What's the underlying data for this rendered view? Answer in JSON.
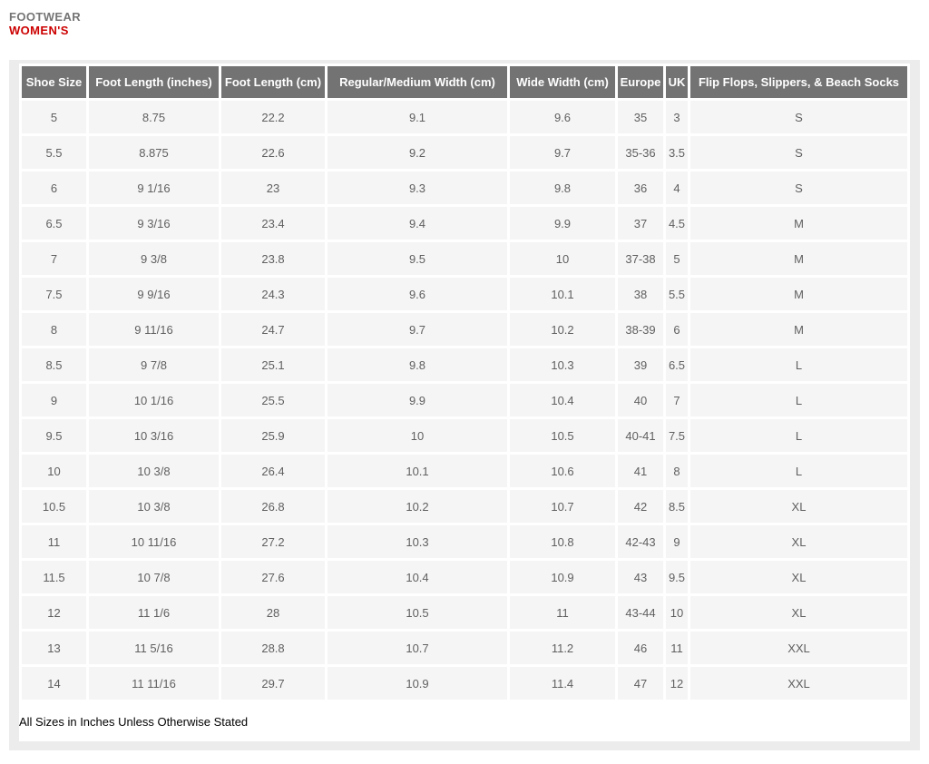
{
  "header": {
    "category": "FOOTWEAR",
    "gender": "WOMEN'S"
  },
  "colors": {
    "accent_red": "#cc0000",
    "table_header_bg": "#737373",
    "cell_bg": "#f5f5f5",
    "panel_frame_bg": "#ececec"
  },
  "table": {
    "headers": [
      "Shoe Size",
      "Foot Length (inches)",
      "Foot Length (cm)",
      "Regular/Medium Width (cm)",
      "Wide Width (cm)",
      "Europe",
      "UK",
      "Flip Flops, Slippers, & Beach Socks"
    ],
    "rows": [
      [
        "5",
        "8.75",
        "22.2",
        "9.1",
        "9.6",
        "35",
        "3",
        "S"
      ],
      [
        "5.5",
        "8.875",
        "22.6",
        "9.2",
        "9.7",
        "35-36",
        "3.5",
        "S"
      ],
      [
        "6",
        "9 1/16",
        "23",
        "9.3",
        "9.8",
        "36",
        "4",
        "S"
      ],
      [
        "6.5",
        "9 3/16",
        "23.4",
        "9.4",
        "9.9",
        "37",
        "4.5",
        "M"
      ],
      [
        "7",
        "9 3/8",
        "23.8",
        "9.5",
        "10",
        "37-38",
        "5",
        "M"
      ],
      [
        "7.5",
        "9 9/16",
        "24.3",
        "9.6",
        "10.1",
        "38",
        "5.5",
        "M"
      ],
      [
        "8",
        "9 11/16",
        "24.7",
        "9.7",
        "10.2",
        "38-39",
        "6",
        "M"
      ],
      [
        "8.5",
        "9 7/8",
        "25.1",
        "9.8",
        "10.3",
        "39",
        "6.5",
        "L"
      ],
      [
        "9",
        "10 1/16",
        "25.5",
        "9.9",
        "10.4",
        "40",
        "7",
        "L"
      ],
      [
        "9.5",
        "10 3/16",
        "25.9",
        "10",
        "10.5",
        "40-41",
        "7.5",
        "L"
      ],
      [
        "10",
        "10 3/8",
        "26.4",
        "10.1",
        "10.6",
        "41",
        "8",
        "L"
      ],
      [
        "10.5",
        "10 3/8",
        "26.8",
        "10.2",
        "10.7",
        "42",
        "8.5",
        "XL"
      ],
      [
        "11",
        "10 11/16",
        "27.2",
        "10.3",
        "10.8",
        "42-43",
        "9",
        "XL"
      ],
      [
        "11.5",
        "10 7/8",
        "27.6",
        "10.4",
        "10.9",
        "43",
        "9.5",
        "XL"
      ],
      [
        "12",
        "11 1/6",
        "28",
        "10.5",
        "11",
        "43-44",
        "10",
        "XL"
      ],
      [
        "13",
        "11 5/16",
        "28.8",
        "10.7",
        "11.2",
        "46",
        "11",
        "XXL"
      ],
      [
        "14",
        "11 11/16",
        "29.7",
        "10.9",
        "11.4",
        "47",
        "12",
        "XXL"
      ]
    ]
  },
  "footnote": "All Sizes in Inches Unless Otherwise Stated"
}
